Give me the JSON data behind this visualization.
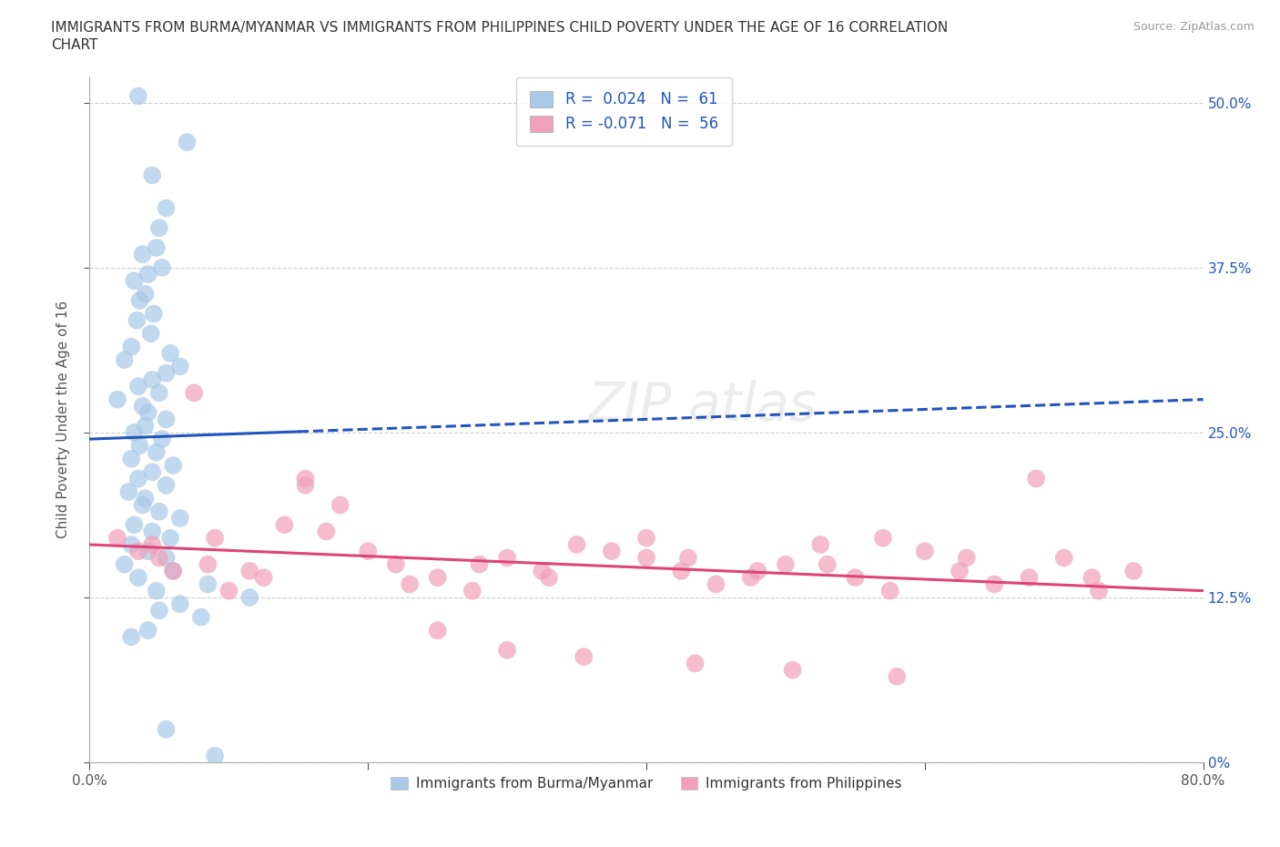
{
  "title_line1": "IMMIGRANTS FROM BURMA/MYANMAR VS IMMIGRANTS FROM PHILIPPINES CHILD POVERTY UNDER THE AGE OF 16 CORRELATION",
  "title_line2": "CHART",
  "source": "Source: ZipAtlas.com",
  "ylabel": "Child Poverty Under the Age of 16",
  "xlim": [
    0.0,
    80.0
  ],
  "ylim": [
    0.0,
    52.0
  ],
  "yticks": [
    0.0,
    12.5,
    25.0,
    37.5,
    50.0
  ],
  "xticks": [
    0.0,
    20.0,
    40.0,
    60.0,
    80.0
  ],
  "xtick_labels": [
    "0.0%",
    "",
    "",
    "",
    "80.0%"
  ],
  "ytick_labels_right": [
    "0%",
    "12.5%",
    "25.0%",
    "37.5%",
    "50.0%"
  ],
  "blue_color": "#a8c8e8",
  "pink_color": "#f0a0b8",
  "blue_line_color": "#2255bb",
  "pink_line_color": "#dd4477",
  "R_blue": 0.024,
  "N_blue": 61,
  "R_pink": -0.071,
  "N_pink": 56,
  "legend_label_blue": "Immigrants from Burma/Myanmar",
  "legend_label_pink": "Immigrants from Philippines",
  "watermark": "ZIPatlas",
  "blue_line_x0": 0.0,
  "blue_line_y0": 24.5,
  "blue_line_x1": 80.0,
  "blue_line_y1": 27.5,
  "blue_solid_end": 15.0,
  "pink_line_x0": 0.0,
  "pink_line_y0": 16.5,
  "pink_line_x1": 80.0,
  "pink_line_y1": 13.0,
  "blue_scatter_x": [
    3.5,
    7.0,
    4.5,
    5.5,
    5.0,
    4.8,
    3.8,
    5.2,
    4.2,
    3.2,
    4.0,
    3.6,
    4.6,
    3.4,
    4.4,
    3.0,
    5.8,
    2.5,
    6.5,
    5.5,
    4.5,
    3.5,
    5.0,
    2.0,
    3.8,
    4.2,
    5.5,
    4.0,
    3.2,
    5.2,
    3.6,
    4.8,
    3.0,
    6.0,
    4.5,
    3.5,
    5.5,
    2.8,
    4.0,
    3.8,
    5.0,
    6.5,
    3.2,
    4.5,
    5.8,
    3.0,
    4.2,
    5.5,
    2.5,
    6.0,
    3.5,
    8.5,
    4.8,
    11.5,
    6.5,
    5.0,
    8.0,
    4.2,
    3.0,
    5.5,
    9.0
  ],
  "blue_scatter_y": [
    50.5,
    47.0,
    44.5,
    42.0,
    40.5,
    39.0,
    38.5,
    37.5,
    37.0,
    36.5,
    35.5,
    35.0,
    34.0,
    33.5,
    32.5,
    31.5,
    31.0,
    30.5,
    30.0,
    29.5,
    29.0,
    28.5,
    28.0,
    27.5,
    27.0,
    26.5,
    26.0,
    25.5,
    25.0,
    24.5,
    24.0,
    23.5,
    23.0,
    22.5,
    22.0,
    21.5,
    21.0,
    20.5,
    20.0,
    19.5,
    19.0,
    18.5,
    18.0,
    17.5,
    17.0,
    16.5,
    16.0,
    15.5,
    15.0,
    14.5,
    14.0,
    13.5,
    13.0,
    12.5,
    12.0,
    11.5,
    11.0,
    10.0,
    9.5,
    2.5,
    0.5
  ],
  "pink_scatter_x": [
    2.0,
    4.5,
    6.0,
    8.5,
    10.0,
    12.5,
    7.5,
    15.5,
    3.5,
    5.0,
    9.0,
    11.5,
    14.0,
    17.0,
    20.0,
    23.0,
    25.0,
    27.5,
    30.0,
    32.5,
    35.0,
    15.5,
    18.0,
    22.0,
    28.0,
    33.0,
    37.5,
    40.0,
    42.5,
    45.0,
    47.5,
    50.0,
    52.5,
    55.0,
    57.5,
    40.0,
    43.0,
    48.0,
    53.0,
    60.0,
    62.5,
    65.0,
    67.5,
    70.0,
    72.5,
    75.0,
    57.0,
    63.0,
    68.0,
    72.0,
    25.0,
    30.0,
    35.5,
    43.5,
    50.5,
    58.0
  ],
  "pink_scatter_y": [
    17.0,
    16.5,
    14.5,
    15.0,
    13.0,
    14.0,
    28.0,
    21.0,
    16.0,
    15.5,
    17.0,
    14.5,
    18.0,
    17.5,
    16.0,
    13.5,
    14.0,
    13.0,
    15.5,
    14.5,
    16.5,
    21.5,
    19.5,
    15.0,
    15.0,
    14.0,
    16.0,
    15.5,
    14.5,
    13.5,
    14.0,
    15.0,
    16.5,
    14.0,
    13.0,
    17.0,
    15.5,
    14.5,
    15.0,
    16.0,
    14.5,
    13.5,
    14.0,
    15.5,
    13.0,
    14.5,
    17.0,
    15.5,
    21.5,
    14.0,
    10.0,
    8.5,
    8.0,
    7.5,
    7.0,
    6.5
  ]
}
